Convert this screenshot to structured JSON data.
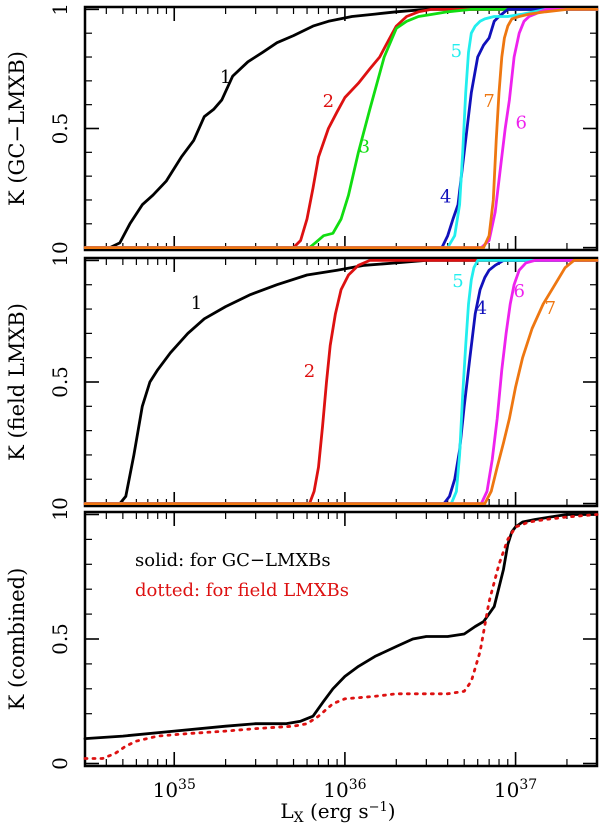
{
  "figure": {
    "x_axis": {
      "label_main": "L",
      "label_sub": "X",
      "label_units": " (erg s",
      "label_exp": "−1",
      "label_close": ")",
      "scale": "log",
      "range": [
        3e+34,
        3e+37
      ],
      "major_ticks": [
        {
          "value": 1e+35,
          "base": "10",
          "exp": "35"
        },
        {
          "value": 1e+36,
          "base": "10",
          "exp": "36"
        },
        {
          "value": 1e+37,
          "base": "10",
          "exp": "37"
        }
      ]
    },
    "y_ticks": [
      {
        "value": 0,
        "label": "0"
      },
      {
        "value": 0.5,
        "label": "0.5"
      },
      {
        "value": 1,
        "label": "1"
      }
    ]
  },
  "chart_data": [
    {
      "type": "line",
      "panel": "top",
      "ylabel": "K (GC−LMXB)",
      "ylim": [
        -0.01,
        1.01
      ],
      "series": [
        {
          "name": "1",
          "label": "1",
          "color": "#000000",
          "style": "solid",
          "x": [
            3e+34,
            4.2e+34,
            4.8e+34,
            5.5e+34,
            6.5e+34,
            7.5e+34,
            9e+34,
            1.1e+35,
            1.3e+35,
            1.5e+35,
            1.7e+35,
            1.9e+35,
            2.2e+35,
            2.7e+35,
            3.3e+35,
            4e+35,
            5e+35,
            6.5e+35,
            8e+35,
            1.1e+36,
            1.5e+36,
            2e+36,
            3e+36,
            1e+37,
            3e+37
          ],
          "y": [
            0,
            0,
            0.02,
            0.1,
            0.18,
            0.22,
            0.28,
            0.38,
            0.45,
            0.55,
            0.58,
            0.62,
            0.72,
            0.78,
            0.82,
            0.86,
            0.89,
            0.93,
            0.95,
            0.97,
            0.98,
            0.99,
            1.0,
            1.0,
            1.0
          ],
          "label_at": [
            2e+35,
            0.69
          ]
        },
        {
          "name": "2",
          "label": "2",
          "color": "#dd1111",
          "style": "solid",
          "x": [
            3e+34,
            5e+35,
            5.5e+35,
            6e+35,
            6.5e+35,
            7e+35,
            8e+35,
            9e+35,
            1e+36,
            1.2e+36,
            1.4e+36,
            1.6e+36,
            1.8e+36,
            2e+36,
            2.3e+36,
            2.7e+36,
            3.2e+36,
            4e+36,
            5e+36,
            3e+37
          ],
          "y": [
            0,
            0,
            0.03,
            0.12,
            0.25,
            0.38,
            0.5,
            0.57,
            0.63,
            0.69,
            0.75,
            0.8,
            0.87,
            0.93,
            0.97,
            0.99,
            1.0,
            1.0,
            1.0,
            1.0
          ],
          "label_at": [
            8e+35,
            0.59
          ]
        },
        {
          "name": "3",
          "label": "3",
          "color": "#11dd11",
          "style": "solid",
          "x": [
            3e+34,
            6.2e+35,
            6.7e+35,
            7.5e+35,
            8.5e+35,
            9.5e+35,
            1.05e+36,
            1.2e+36,
            1.4e+36,
            1.7e+36,
            2e+36,
            2.3e+36,
            2.7e+36,
            3.3e+36,
            4e+36,
            5.5e+36,
            7e+36,
            9e+36,
            3e+37
          ],
          "y": [
            0,
            0,
            0.02,
            0.05,
            0.06,
            0.12,
            0.22,
            0.4,
            0.58,
            0.8,
            0.92,
            0.95,
            0.97,
            0.98,
            0.99,
            1.0,
            1.0,
            1.0,
            1.0
          ],
          "label_at": [
            1.3e+36,
            0.4
          ]
        },
        {
          "name": "4",
          "label": "4",
          "color": "#1111bb",
          "style": "solid",
          "x": [
            3e+34,
            3.7e+36,
            4e+36,
            4.3e+36,
            4.6e+36,
            5e+36,
            5.5e+36,
            6e+36,
            6.5e+36,
            7e+36,
            7.5e+36,
            8e+36,
            9e+36,
            1.05e+37,
            3e+37
          ],
          "y": [
            0,
            0,
            0.05,
            0.12,
            0.18,
            0.4,
            0.65,
            0.8,
            0.85,
            0.88,
            0.95,
            0.97,
            1.0,
            1.0,
            1.0
          ],
          "label_at": [
            3.9e+36,
            0.19
          ]
        },
        {
          "name": "5",
          "label": "5",
          "color": "#22eeee",
          "style": "solid",
          "x": [
            3e+34,
            4e+36,
            4.4e+36,
            4.7e+36,
            4.9e+36,
            5.1e+36,
            5.3e+36,
            5.5e+36,
            5.8e+36,
            6.2e+36,
            6.6e+36,
            7.5e+36,
            9e+36,
            1.1e+37,
            1.5e+37,
            3e+37
          ],
          "y": [
            0,
            0,
            0.05,
            0.18,
            0.4,
            0.65,
            0.82,
            0.9,
            0.93,
            0.95,
            0.96,
            0.97,
            0.97,
            0.98,
            1.0,
            1.0
          ],
          "label_at": [
            4.5e+36,
            0.8
          ]
        },
        {
          "name": "6",
          "label": "6",
          "color": "#ee22ee",
          "style": "solid",
          "x": [
            3e+34,
            6.3e+36,
            7e+36,
            7.6e+36,
            8.2e+36,
            8.7e+36,
            9.2e+36,
            9.8e+36,
            1.05e+37,
            1.12e+37,
            1.2e+37,
            1.3e+37,
            1.5e+37,
            3e+37
          ],
          "y": [
            0,
            0,
            0.03,
            0.15,
            0.35,
            0.5,
            0.62,
            0.8,
            0.9,
            0.95,
            0.97,
            0.98,
            1.0,
            1.0
          ],
          "label_at": [
            1.08e+37,
            0.5
          ]
        },
        {
          "name": "7",
          "label": "7",
          "color": "#ee7711",
          "style": "solid",
          "x": [
            3e+34,
            6.5e+36,
            7e+36,
            7.4e+36,
            7.7e+36,
            8e+36,
            8.3e+36,
            8.6e+36,
            9e+36,
            9.5e+36,
            1.05e+37,
            1.2e+37,
            1.5e+37,
            2e+37,
            3e+37
          ],
          "y": [
            0,
            0,
            0.05,
            0.2,
            0.45,
            0.65,
            0.8,
            0.88,
            0.93,
            0.96,
            0.97,
            0.98,
            0.99,
            1.0,
            1.0
          ],
          "label_at": [
            7e+36,
            0.59
          ]
        }
      ]
    },
    {
      "type": "line",
      "panel": "middle",
      "ylabel": "K (field LMXB)",
      "ylim": [
        -0.01,
        1.01
      ],
      "series": [
        {
          "name": "1",
          "label": "1",
          "color": "#000000",
          "style": "solid",
          "x": [
            3e+34,
            4.8e+34,
            5.2e+34,
            5.8e+34,
            6.5e+34,
            7.2e+34,
            8e+34,
            9.5e+34,
            1.2e+35,
            1.5e+35,
            2e+35,
            2.8e+35,
            4e+35,
            6e+35,
            9e+35,
            1.3e+36,
            2e+36,
            3e+36,
            3e+37
          ],
          "y": [
            0,
            0,
            0.03,
            0.2,
            0.4,
            0.5,
            0.55,
            0.62,
            0.7,
            0.76,
            0.81,
            0.86,
            0.9,
            0.94,
            0.96,
            0.98,
            0.99,
            1.0,
            1.0
          ],
          "label_at": [
            1.35e+35,
            0.8
          ]
        },
        {
          "name": "2",
          "label": "2",
          "color": "#dd1111",
          "style": "solid",
          "x": [
            3e+34,
            6.2e+35,
            6.6e+35,
            7e+35,
            7.4e+35,
            7.8e+35,
            8.2e+35,
            8.8e+35,
            9.5e+35,
            1.05e+36,
            1.2e+36,
            1.4e+36,
            1.8e+36,
            3e+37
          ],
          "y": [
            0,
            0,
            0.05,
            0.15,
            0.32,
            0.5,
            0.65,
            0.78,
            0.88,
            0.94,
            0.98,
            1.0,
            1.0,
            1.0
          ],
          "label_at": [
            6.2e+35,
            0.52
          ]
        },
        {
          "name": "4",
          "label": "4",
          "color": "#1111bb",
          "style": "solid",
          "x": [
            3e+34,
            3.8e+36,
            4.1e+36,
            4.4e+36,
            4.7e+36,
            5e+36,
            5.4e+36,
            5.8e+36,
            6.2e+36,
            6.6e+36,
            7e+36,
            7.6e+36,
            8.5e+36,
            3e+37
          ],
          "y": [
            0,
            0,
            0.03,
            0.1,
            0.22,
            0.4,
            0.6,
            0.78,
            0.88,
            0.93,
            0.96,
            0.98,
            1.0,
            1.0
          ],
          "label_at": [
            6.3e+36,
            0.78
          ]
        },
        {
          "name": "5",
          "label": "5",
          "color": "#22eeee",
          "style": "solid",
          "x": [
            3e+34,
            4.2e+36,
            4.5e+36,
            4.7e+36,
            4.9e+36,
            5.1e+36,
            5.3e+36,
            5.5e+36,
            5.7e+36,
            6e+36,
            6.5e+36,
            3e+37
          ],
          "y": [
            0,
            0,
            0.05,
            0.2,
            0.45,
            0.65,
            0.82,
            0.92,
            0.97,
            1.0,
            1.0,
            1.0
          ],
          "label_at": [
            4.6e+36,
            0.89
          ]
        },
        {
          "name": "6",
          "label": "6",
          "color": "#ee22ee",
          "style": "solid",
          "x": [
            3e+34,
            6.3e+36,
            6.8e+36,
            7.3e+36,
            7.8e+36,
            8.3e+36,
            8.8e+36,
            9.3e+36,
            9.8e+36,
            1.05e+37,
            1.15e+37,
            1.3e+37,
            3e+37
          ],
          "y": [
            0,
            0,
            0.05,
            0.18,
            0.35,
            0.55,
            0.7,
            0.82,
            0.9,
            0.96,
            0.99,
            1.0,
            1.0
          ],
          "label_at": [
            1.05e+37,
            0.85
          ]
        },
        {
          "name": "7",
          "label": "7",
          "color": "#ee7711",
          "style": "solid",
          "x": [
            3e+34,
            6.6e+36,
            7.2e+36,
            7.8e+36,
            8.5e+36,
            9.2e+36,
            1e+37,
            1.1e+37,
            1.25e+37,
            1.45e+37,
            1.7e+37,
            1.95e+37,
            2.2e+37,
            3e+37
          ],
          "y": [
            0,
            0,
            0.05,
            0.15,
            0.25,
            0.35,
            0.48,
            0.6,
            0.72,
            0.82,
            0.9,
            0.97,
            1.0,
            1.0
          ],
          "label_at": [
            1.6e+37,
            0.78
          ]
        }
      ]
    },
    {
      "type": "line",
      "panel": "bottom",
      "ylabel": "K (combined)",
      "ylim": [
        -0.01,
        1.01
      ],
      "legend_text": [
        {
          "text": "solid: for GC−LMXBs",
          "color": "#000000"
        },
        {
          "text": "dotted: for field LMXBs",
          "color": "#dd1111"
        }
      ],
      "series": [
        {
          "name": "GC-LMXBs (solid)",
          "color": "#000000",
          "style": "solid",
          "x": [
            3e+34,
            5e+34,
            1e+35,
            2e+35,
            3e+35,
            4.5e+35,
            5.5e+35,
            6.5e+35,
            7.5e+35,
            8.5e+35,
            1e+36,
            1.2e+36,
            1.5e+36,
            2e+36,
            2.5e+36,
            3e+36,
            4e+36,
            5e+36,
            5.8e+36,
            6.5e+36,
            7.5e+36,
            8.5e+36,
            9e+36,
            9.5e+36,
            1e+37,
            1.1e+37,
            1.3e+37,
            1.6e+37,
            2e+37,
            3e+37
          ],
          "y": [
            0.1,
            0.11,
            0.13,
            0.15,
            0.16,
            0.16,
            0.17,
            0.19,
            0.25,
            0.3,
            0.35,
            0.39,
            0.43,
            0.47,
            0.5,
            0.51,
            0.51,
            0.52,
            0.55,
            0.57,
            0.63,
            0.78,
            0.88,
            0.93,
            0.95,
            0.97,
            0.98,
            0.99,
            1.0,
            1.0
          ]
        },
        {
          "name": "field LMXBs (dotted)",
          "color": "#dd1111",
          "style": "dotted",
          "x": [
            3e+34,
            3.8e+34,
            4.5e+34,
            5.2e+34,
            6e+34,
            8e+34,
            1.2e+35,
            2e+35,
            3e+35,
            5e+35,
            6e+35,
            7e+35,
            8.5e+35,
            1e+36,
            1.5e+36,
            2e+36,
            3e+36,
            4e+36,
            5e+36,
            5.5e+36,
            6.2e+36,
            7e+36,
            8e+36,
            9e+36,
            1e+37,
            1.2e+37,
            1.5e+37,
            2e+37,
            3e+37
          ],
          "y": [
            0.02,
            0.02,
            0.04,
            0.07,
            0.09,
            0.11,
            0.12,
            0.13,
            0.14,
            0.15,
            0.16,
            0.19,
            0.24,
            0.26,
            0.27,
            0.28,
            0.28,
            0.28,
            0.29,
            0.33,
            0.45,
            0.65,
            0.8,
            0.9,
            0.95,
            0.97,
            0.98,
            0.99,
            1.0
          ]
        }
      ]
    }
  ]
}
